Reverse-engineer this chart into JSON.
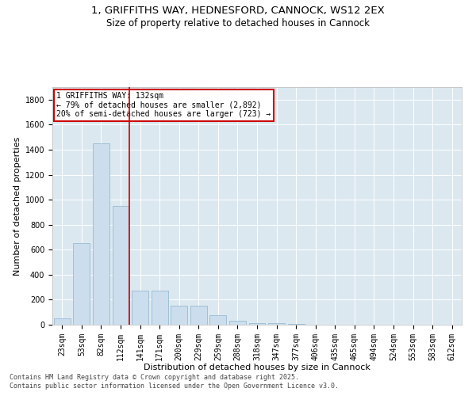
{
  "title_line1": "1, GRIFFITHS WAY, HEDNESFORD, CANNOCK, WS12 2EX",
  "title_line2": "Size of property relative to detached houses in Cannock",
  "xlabel": "Distribution of detached houses by size in Cannock",
  "ylabel": "Number of detached properties",
  "categories": [
    "23sqm",
    "53sqm",
    "82sqm",
    "112sqm",
    "141sqm",
    "171sqm",
    "200sqm",
    "229sqm",
    "259sqm",
    "288sqm",
    "318sqm",
    "347sqm",
    "377sqm",
    "406sqm",
    "435sqm",
    "465sqm",
    "494sqm",
    "524sqm",
    "553sqm",
    "583sqm",
    "612sqm"
  ],
  "values": [
    50,
    650,
    1450,
    950,
    270,
    270,
    155,
    155,
    75,
    30,
    15,
    10,
    5,
    2,
    1,
    1,
    0,
    0,
    0,
    0,
    0
  ],
  "bar_color": "#ccdded",
  "bar_edge_color": "#8ab4cc",
  "vline_color": "#cc0000",
  "vline_pos": 3.43,
  "annotation_text": "1 GRIFFITHS WAY: 132sqm\n← 79% of detached houses are smaller (2,892)\n20% of semi-detached houses are larger (723) →",
  "annotation_box_color": "#ffffff",
  "annotation_box_edge": "#cc0000",
  "ylim": [
    0,
    1900
  ],
  "yticks": [
    0,
    200,
    400,
    600,
    800,
    1000,
    1200,
    1400,
    1600,
    1800
  ],
  "background_color": "#dce8f0",
  "grid_color": "#ffffff",
  "footer_line1": "Contains HM Land Registry data © Crown copyright and database right 2025.",
  "footer_line2": "Contains public sector information licensed under the Open Government Licence v3.0.",
  "title_fontsize": 9.5,
  "subtitle_fontsize": 8.5,
  "axis_label_fontsize": 8,
  "tick_fontsize": 7,
  "annotation_fontsize": 7,
  "footer_fontsize": 6
}
